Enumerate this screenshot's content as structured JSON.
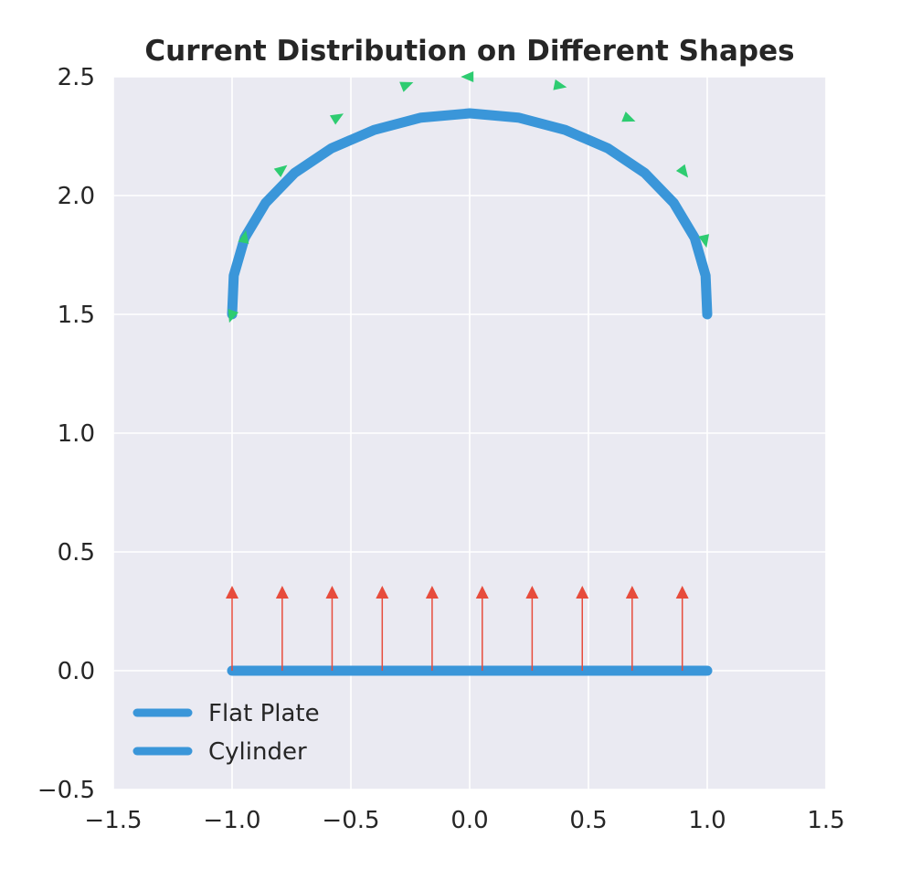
{
  "chart_data": {
    "type": "line",
    "title": "Current Distribution on Different Shapes",
    "xlabel": "",
    "ylabel": "",
    "xlim": [
      -1.5,
      1.5
    ],
    "ylim": [
      -0.5,
      2.5
    ],
    "xticks": [
      "−1.5",
      "−1.0",
      "−0.5",
      "0.0",
      "0.5",
      "1.0",
      "1.5"
    ],
    "xtick_values": [
      -1.5,
      -1.0,
      -0.5,
      0.0,
      0.5,
      1.0,
      1.5
    ],
    "yticks": [
      "−0.5",
      "0.0",
      "0.5",
      "1.0",
      "1.5",
      "2.0",
      "2.5"
    ],
    "ytick_values": [
      -0.5,
      0.0,
      0.5,
      1.0,
      1.5,
      2.0,
      2.5
    ],
    "grid": true,
    "legend_position": "lower-left",
    "series": [
      {
        "name": "Flat Plate",
        "color": "#3a96d9",
        "x": [
          -1.0,
          1.0
        ],
        "y": [
          0.0,
          0.0
        ]
      },
      {
        "name": "Cylinder",
        "color": "#3a96d9",
        "x": [
          -1.0,
          -0.993,
          -0.947,
          -0.859,
          -0.737,
          -0.582,
          -0.402,
          -0.205,
          0.0,
          0.205,
          0.402,
          0.582,
          0.737,
          0.859,
          0.947,
          0.993,
          1.0
        ],
        "y": [
          1.5,
          1.663,
          1.822,
          1.969,
          2.095,
          2.199,
          2.276,
          2.328,
          2.346,
          2.328,
          2.276,
          2.199,
          2.095,
          1.969,
          1.822,
          1.663,
          1.5
        ]
      }
    ],
    "plate_arrows": {
      "color": "#e74c3c",
      "x": [
        -1.0,
        -0.789,
        -0.579,
        -0.368,
        -0.158,
        0.053,
        0.263,
        0.474,
        0.684,
        0.895
      ],
      "y_start": 0.0,
      "y_end": 0.35
    },
    "cylinder_arrows": {
      "color": "#2ecc71",
      "points": [
        {
          "x": -1.0,
          "y": 1.5,
          "dx": -0.03,
          "dy": -0.09
        },
        {
          "x": -0.949,
          "y": 1.817,
          "dx": 0.01,
          "dy": 0.05
        },
        {
          "x": -0.797,
          "y": 2.105,
          "dx": 0.05,
          "dy": 0.04
        },
        {
          "x": -0.563,
          "y": 2.326,
          "dx": 0.05,
          "dy": 0.03
        },
        {
          "x": -0.272,
          "y": 2.463,
          "dx": 0.05,
          "dy": 0.02
        },
        {
          "x": 0.0,
          "y": 2.5,
          "dx": 0.0,
          "dy": 0.0
        },
        {
          "x": 0.372,
          "y": 2.463,
          "dx": 0.05,
          "dy": -0.01
        },
        {
          "x": 0.663,
          "y": 2.326,
          "dx": 0.05,
          "dy": -0.02
        },
        {
          "x": 0.897,
          "y": 2.105,
          "dx": 0.03,
          "dy": -0.04
        },
        {
          "x": 0.989,
          "y": 1.817,
          "dx": 0.02,
          "dy": -0.09
        }
      ]
    }
  }
}
